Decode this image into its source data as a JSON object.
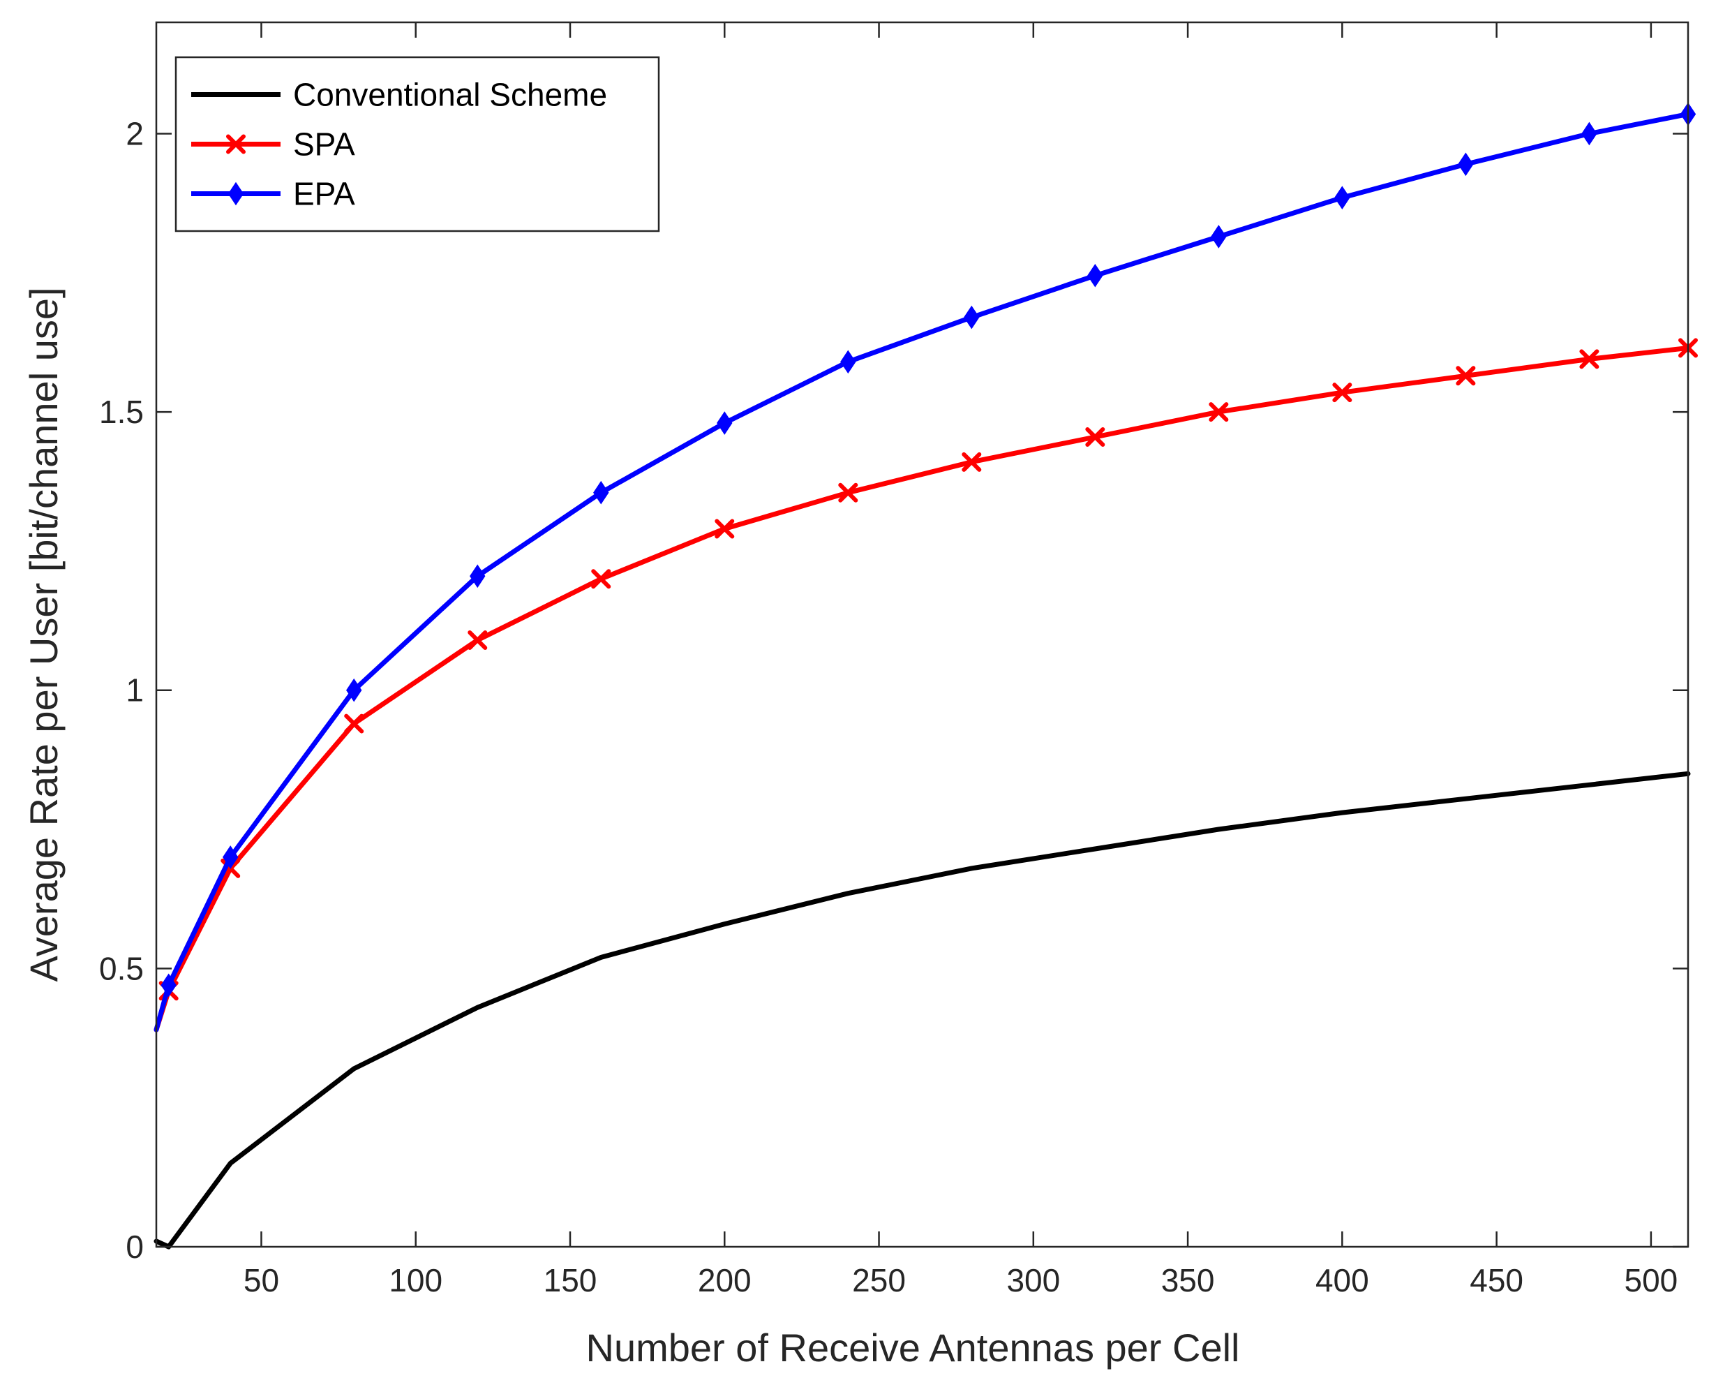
{
  "chart_data": {
    "type": "line",
    "title": "",
    "xlabel": "Number of Receive Antennas per Cell",
    "ylabel": "Average Rate per User [bit/channel use]",
    "xlim": [
      16,
      512
    ],
    "ylim": [
      0,
      2.2
    ],
    "xticks": [
      50,
      100,
      150,
      200,
      250,
      300,
      350,
      400,
      450,
      500
    ],
    "yticks": [
      0,
      0.5,
      1,
      1.5,
      2
    ],
    "xtick_labels": [
      "50",
      "100",
      "150",
      "200",
      "250",
      "300",
      "350",
      "400",
      "450",
      "500"
    ],
    "ytick_labels": [
      "0",
      "0.5",
      "1",
      "1.5",
      "2"
    ],
    "grid": false,
    "legend_position": "top-left",
    "series": [
      {
        "name": "Conventional Scheme",
        "color": "#000000",
        "marker": "none",
        "x": [
          16,
          20,
          40,
          80,
          120,
          160,
          200,
          240,
          280,
          320,
          360,
          400,
          440,
          480,
          512
        ],
        "y": [
          0.01,
          0.0,
          0.15,
          0.32,
          0.43,
          0.52,
          0.58,
          0.635,
          0.68,
          0.715,
          0.75,
          0.78,
          0.805,
          0.83,
          0.85
        ]
      },
      {
        "name": "SPA",
        "color": "#ff0000",
        "marker": "x",
        "x": [
          16,
          20,
          40,
          80,
          120,
          160,
          200,
          240,
          280,
          320,
          360,
          400,
          440,
          480,
          512
        ],
        "y": [
          0.39,
          0.46,
          0.68,
          0.94,
          1.09,
          1.2,
          1.29,
          1.355,
          1.41,
          1.455,
          1.5,
          1.535,
          1.565,
          1.595,
          1.615
        ]
      },
      {
        "name": "EPA",
        "color": "#0000ff",
        "marker": "diamond",
        "x": [
          16,
          20,
          40,
          80,
          120,
          160,
          200,
          240,
          280,
          320,
          360,
          400,
          440,
          480,
          512
        ],
        "y": [
          0.39,
          0.47,
          0.7,
          1.0,
          1.205,
          1.355,
          1.48,
          1.59,
          1.67,
          1.745,
          1.815,
          1.885,
          1.945,
          2.0,
          2.035
        ]
      }
    ]
  }
}
